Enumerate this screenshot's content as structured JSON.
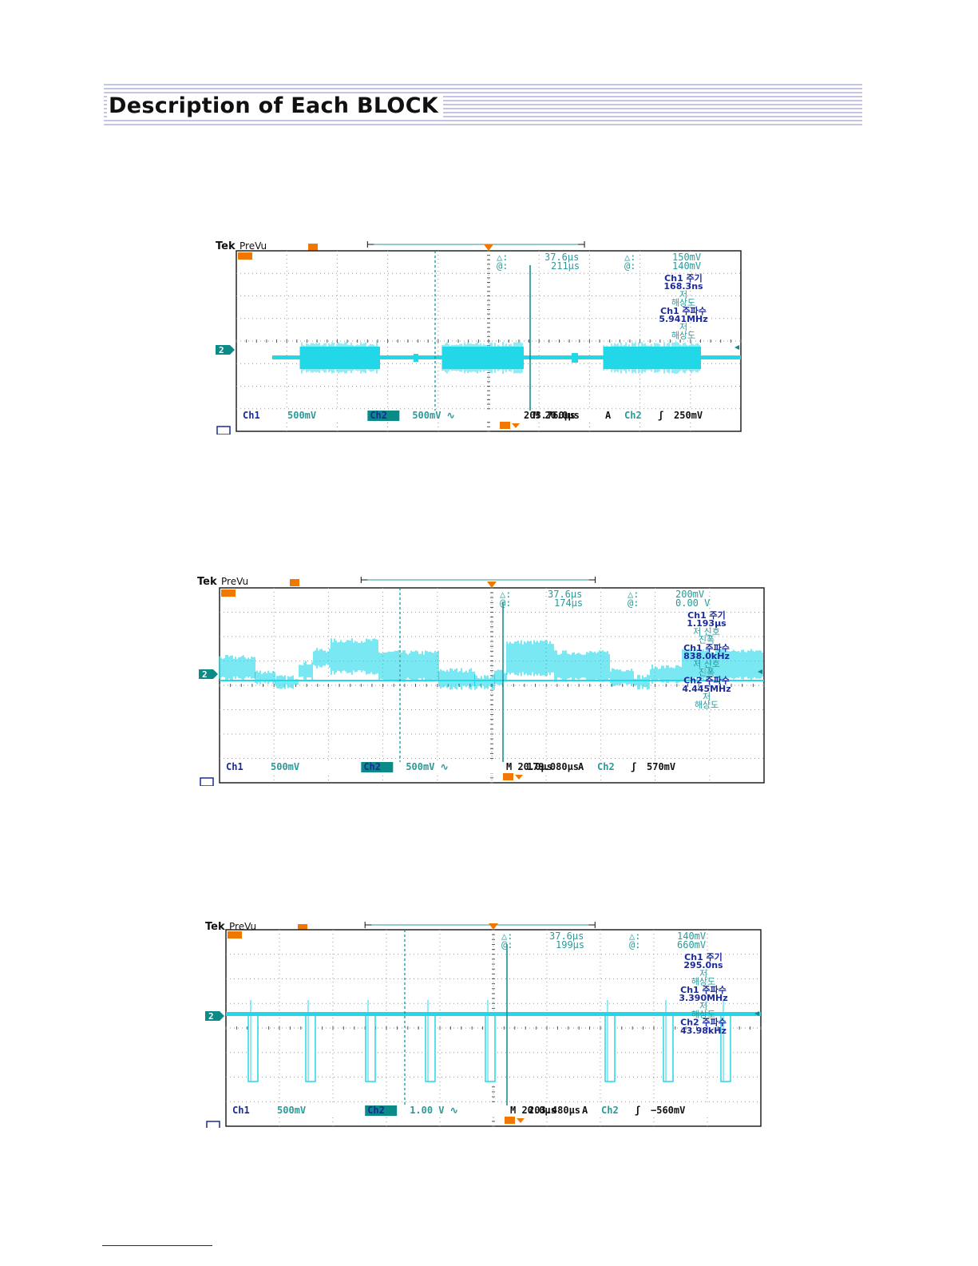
{
  "header": {
    "title": "Description of Each BLOCK"
  },
  "colors": {
    "trace": "#22d8e8",
    "grid": "#9a9a9a",
    "marker_orange": "#f07800",
    "ch2_badge": "#0c8a88",
    "readout_teal": "#2a9a9a",
    "readout_blue": "#1a2a9a",
    "header_lines": "#8a8ad0"
  },
  "scopes": [
    {
      "brand": "Tek",
      "mode": "PreVu",
      "cursor": {
        "delta_t": "37.6µs",
        "at_t": "211µs",
        "delta_v": "150mV",
        "at_v": "140mV",
        "delta_sym": "△:",
        "at_sym": "@:"
      },
      "measurements": [
        "Ch1 주기",
        "168.3ns",
        "저",
        "해상도",
        "Ch1 주파수",
        "5.941MHz",
        "저",
        "해상도"
      ],
      "bottom": {
        "ch1": "Ch1",
        "ch1_scale": "500mV",
        "ch2": "Ch2",
        "ch2_scale": "500mV ∿",
        "timebase": "M 20.0µs",
        "acq": "A",
        "trig_src": "Ch2",
        "trig_slope": "ʃ",
        "trig_level": "250mV"
      },
      "trigger_pos": "203.760µs",
      "ch_marker": "2"
    },
    {
      "brand": "Tek",
      "mode": "PreVu",
      "cursor": {
        "delta_t": "37.6µs",
        "at_t": "174µs",
        "delta_v": "200mV",
        "at_v": "0.00 V",
        "delta_sym": "△:",
        "at_sym": "@:"
      },
      "measurements": [
        "Ch1 주기",
        "1.193µs",
        "저 신호",
        "진폭",
        "Ch1 주파수",
        "838.0kHz",
        "저 신호",
        "진폭",
        "Ch2 주파수",
        "4.445MHz",
        "저",
        "해상도"
      ],
      "bottom": {
        "ch1": "Ch1",
        "ch1_scale": "500mV",
        "ch2": "Ch2",
        "ch2_scale": "500mV ∿",
        "timebase": "M 20.0µs",
        "acq": "A",
        "trig_src": "Ch2",
        "trig_slope": "ʃ",
        "trig_level": "570mV"
      },
      "trigger_pos": "179.080µs",
      "ch_marker": "2"
    },
    {
      "brand": "Tek",
      "mode": "PreVu",
      "cursor": {
        "delta_t": "37.6µs",
        "at_t": "199µs",
        "delta_v": "140mV",
        "at_v": "660mV",
        "delta_sym": "△:",
        "at_sym": "@:"
      },
      "measurements": [
        "Ch1 주기",
        "295.0ns",
        "저",
        "해상도",
        "Ch1 주파수",
        "3.390MHz",
        "저",
        "해상도",
        "Ch2 주파수",
        "43.98kHz"
      ],
      "bottom": {
        "ch1": "Ch1",
        "ch1_scale": "500mV",
        "ch2": "Ch2",
        "ch2_scale": "1.00 V ∿",
        "timebase": "M 20.0µs",
        "acq": "A",
        "trig_src": "Ch2",
        "trig_slope": "ʃ",
        "trig_level": "−560mV"
      },
      "trigger_pos": "203.480µs",
      "ch_marker": "2"
    }
  ]
}
